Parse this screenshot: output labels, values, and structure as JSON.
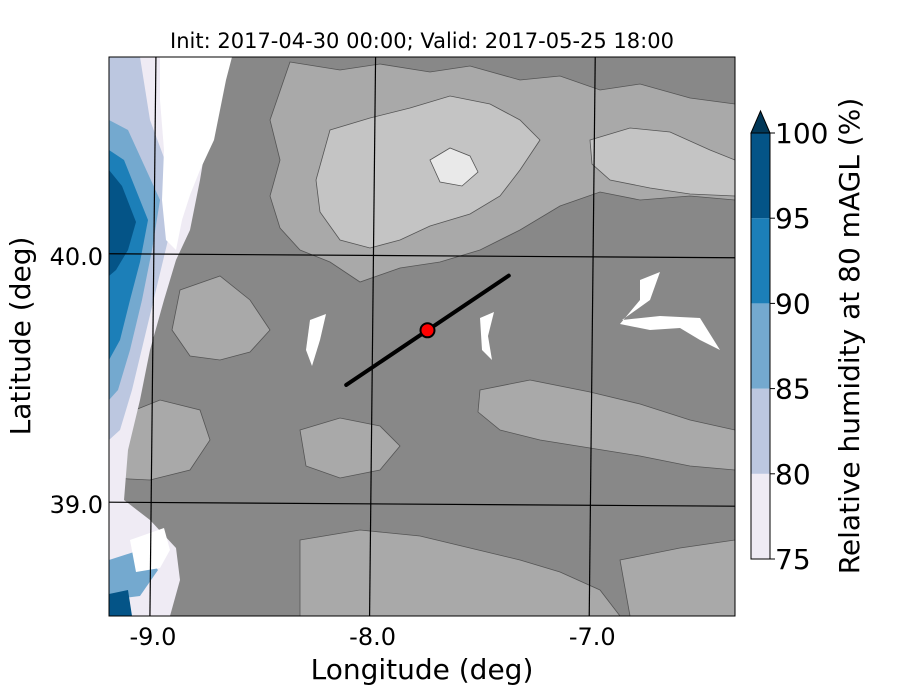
{
  "title": "Init: 2017-04-30 00:00; Valid: 2017-05-25 18:00",
  "x_axis": {
    "label": "Longitude (deg)",
    "ticks": [
      {
        "value": -9.0,
        "label": "-9.0"
      },
      {
        "value": -8.0,
        "label": "-8.0"
      },
      {
        "value": -7.0,
        "label": "-7.0"
      }
    ],
    "range": [
      -9.2,
      -6.35
    ]
  },
  "y_axis": {
    "label": "Latitude (deg)",
    "ticks": [
      {
        "value": 40.0,
        "label": "40.0"
      },
      {
        "value": 39.0,
        "label": "39.0"
      }
    ],
    "range": [
      38.55,
      40.8
    ]
  },
  "colorbar": {
    "label": "Relative humidity at 80 mAGL (%)",
    "levels": [
      {
        "min": 75,
        "max": 80,
        "color": "#efebf4"
      },
      {
        "min": 80,
        "max": 85,
        "color": "#bcc7e0"
      },
      {
        "min": 85,
        "max": 90,
        "color": "#74a9cf"
      },
      {
        "min": 90,
        "max": 95,
        "color": "#1c7fb8"
      },
      {
        "min": 95,
        "max": 100,
        "color": "#045487"
      }
    ],
    "extend_color": "#023858",
    "tick_labels": [
      "75",
      "80",
      "85",
      "90",
      "95",
      "100"
    ]
  },
  "colors": {
    "masked_gray": "#888888",
    "terrain_light": "#a9a9a9",
    "terrain_lighter": "#c4c4c4",
    "terrain_peak": "#e9e9e9",
    "grid": "#000000",
    "transect": "#000000",
    "site_marker": "#ff0000"
  },
  "transect": {
    "start": {
      "lon": -8.12,
      "lat": 39.48
    },
    "end": {
      "lon": -7.38,
      "lat": 39.92
    }
  },
  "site": {
    "lon": -7.75,
    "lat": 39.7
  }
}
